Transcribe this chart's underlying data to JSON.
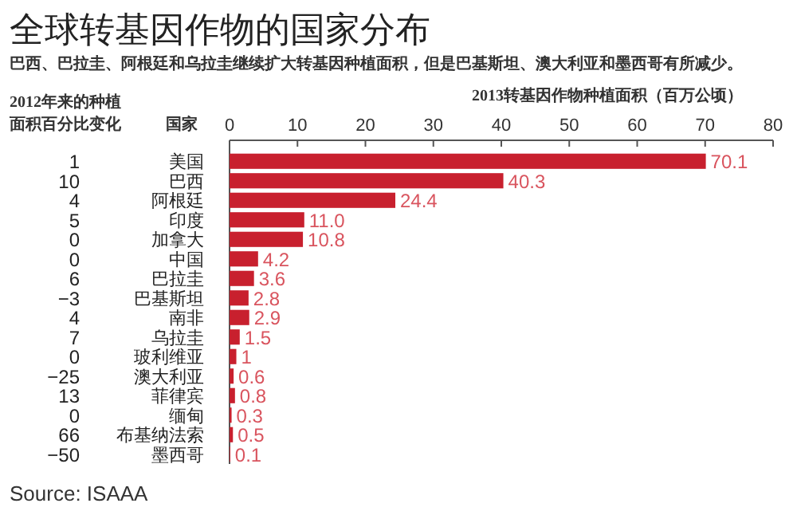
{
  "chart_data": {
    "type": "bar",
    "orientation": "horizontal",
    "title": "全球转基因作物的国家分布",
    "subtitle": "巴西、巴拉圭、阿根廷和乌拉圭继续扩大转基因种植面积，但是巴基斯坦、澳大利亚和墨西哥有所减少。",
    "xlabel": "2013转基因作物种植面积（百万公顷）",
    "ylabel": "国家",
    "categories": [
      "美国",
      "巴西",
      "阿根廷",
      "印度",
      "加拿大",
      "中国",
      "巴拉圭",
      "巴基斯坦",
      "南非",
      "乌拉圭",
      "玻利维亚",
      "澳大利亚",
      "菲律宾",
      "缅甸",
      "布基纳法索",
      "墨西哥"
    ],
    "values": [
      70.1,
      40.3,
      24.4,
      11.0,
      10.8,
      4.2,
      3.6,
      2.8,
      2.9,
      1.5,
      1,
      0.6,
      0.8,
      0.3,
      0.5,
      0.1
    ],
    "value_labels": [
      "70.1",
      "40.3",
      "24.4",
      "11.0",
      "10.8",
      "4.2",
      "3.6",
      "2.8",
      "2.9",
      "1.5",
      "1",
      "0.6",
      "0.8",
      "0.3",
      "0.5",
      "0.1"
    ],
    "color": "#c8202e",
    "xlim": [
      0,
      80
    ],
    "xticks": [
      0,
      10,
      20,
      30,
      40,
      50,
      60,
      70,
      80
    ],
    "annotations": [
      "2012年来的种植",
      "面积百分比变化",
      "1",
      "10",
      "4",
      "5",
      "0",
      "0",
      "6",
      "−3",
      "4",
      "7",
      "0",
      "−25",
      "13",
      "0",
      "66",
      "−50",
      "Source:  ISAAA"
    ]
  }
}
